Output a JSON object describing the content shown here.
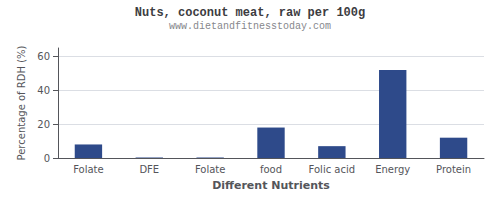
{
  "chart_data": {
    "type": "bar",
    "title": "Nuts, coconut meat, raw per 100g",
    "subtitle": "www.dietandfitnesstoday.com",
    "xlabel": "Different Nutrients",
    "ylabel": "Percentage of RDH (%)",
    "categories": [
      "Folate",
      "DFE",
      "Folate",
      "food",
      "Folic acid",
      "Energy",
      "Protein"
    ],
    "values": [
      8,
      0.3,
      0.3,
      18,
      7,
      52,
      12
    ],
    "color": "#2e4a8a",
    "ylim": [
      0,
      65
    ],
    "yticks": [
      0,
      20,
      40,
      60
    ],
    "grid": true
  }
}
